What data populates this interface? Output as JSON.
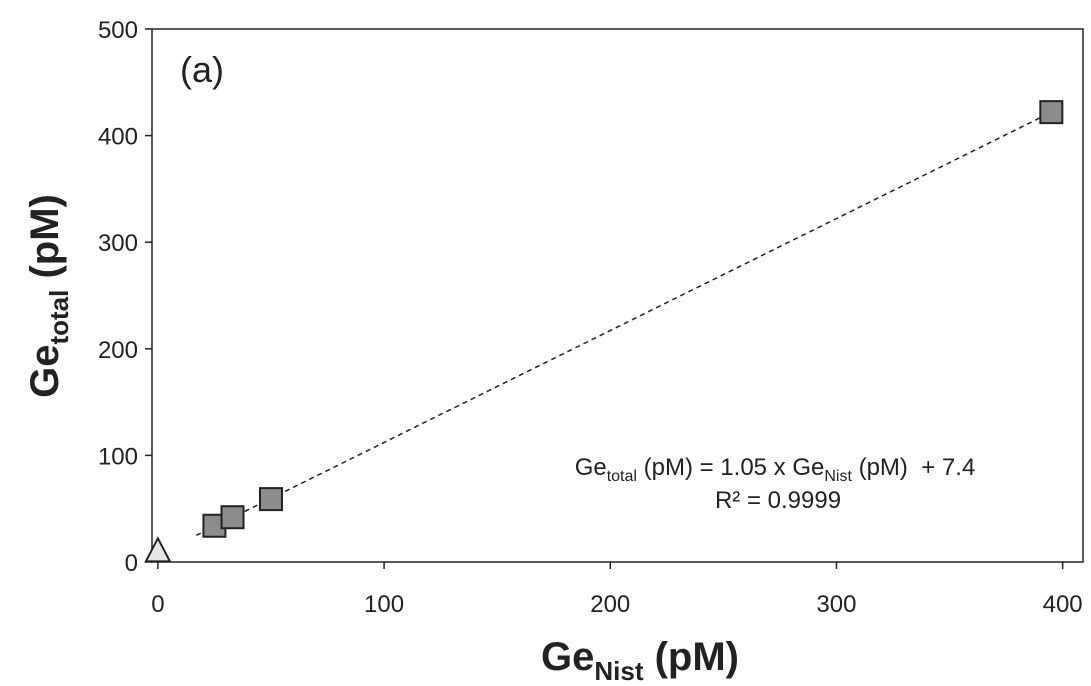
{
  "chart_data": {
    "type": "scatter",
    "panel_label": "(a)",
    "xlabel": [
      "Ge",
      "Nist",
      " (pM)"
    ],
    "ylabel": [
      "Ge",
      "total",
      " (pM)"
    ],
    "equation": [
      "Ge",
      "total",
      " (pM) = 1.05 x Ge",
      "Nist",
      " (pM)  + 7.4"
    ],
    "r_squared": "R² = 0.9999",
    "xlim": [
      -2.6,
      409
    ],
    "ylim": [
      0,
      500
    ],
    "xticks": [
      0,
      100,
      200,
      300,
      400
    ],
    "yticks": [
      0,
      100,
      200,
      300,
      400,
      500
    ],
    "series": [
      {
        "marker": "square",
        "color": "#8c8c8c",
        "x": [
          25,
          33,
          50,
          395
        ],
        "values": [
          34,
          42,
          59,
          422
        ]
      },
      {
        "marker": "triangle",
        "color": "#e6e6e6",
        "x": [
          0
        ],
        "values": [
          10
        ]
      }
    ],
    "trendline": {
      "color": "#222",
      "x": [
        17,
        397
      ],
      "values": [
        25,
        424
      ]
    }
  }
}
